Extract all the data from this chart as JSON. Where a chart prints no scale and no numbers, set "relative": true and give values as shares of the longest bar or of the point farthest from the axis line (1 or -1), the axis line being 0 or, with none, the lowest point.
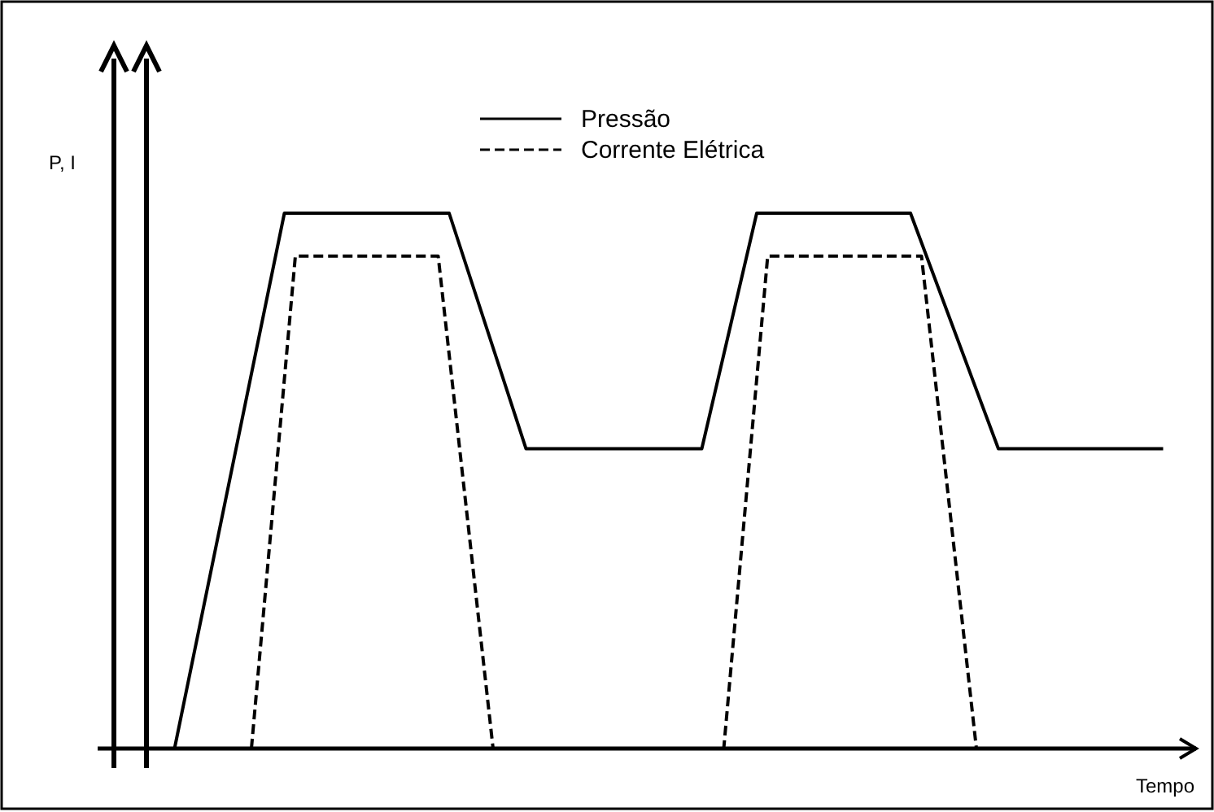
{
  "chart_data": {
    "type": "line",
    "relative": true,
    "xlabel": "Tempo",
    "ylabel": "P, I",
    "legend": "top",
    "categories": [
      null,
      null,
      null,
      null,
      null,
      null,
      null,
      null,
      null,
      null,
      null,
      null,
      null,
      null,
      null,
      null,
      null,
      null,
      null,
      null,
      null,
      null,
      null,
      null,
      null,
      null,
      null,
      null,
      null,
      null,
      null,
      null,
      null,
      null,
      null,
      null,
      null,
      null,
      null,
      null,
      null,
      null,
      null,
      null,
      null,
      null,
      null,
      null,
      null,
      null,
      null,
      null,
      null,
      null,
      null,
      null,
      null,
      null,
      null,
      null,
      null,
      null,
      null,
      null,
      null,
      null,
      null,
      null,
      null,
      null,
      null,
      null,
      null,
      null,
      null,
      null,
      null,
      null,
      null,
      null,
      null,
      null,
      null,
      null,
      null,
      null,
      null,
      null,
      null,
      null,
      null,
      null,
      null,
      null,
      null,
      null,
      null,
      null,
      null,
      null,
      null
    ],
    "series": [
      {
        "name": "Pressão",
        "color": "#000000",
        "line_style": "solid",
        "values": [
          null,
          null,
          null,
          null,
          null,
          null,
          null,
          0,
          null,
          null,
          null,
          null,
          null,
          null,
          null,
          null,
          null,
          1,
          null,
          null,
          null,
          null,
          null,
          null,
          null,
          null,
          null,
          null,
          null,
          null,
          null,
          null,
          1,
          null,
          null,
          null,
          null,
          null,
          null,
          0.56,
          null,
          null,
          null,
          null,
          null,
          null,
          null,
          null,
          null,
          null,
          null,
          null,
          null,
          null,
          null,
          0.56,
          null,
          null,
          null,
          null,
          1,
          null,
          null,
          null,
          null,
          null,
          null,
          null,
          null,
          null,
          null,
          null,
          null,
          null,
          1,
          null,
          null,
          null,
          null,
          null,
          null,
          null,
          0.56,
          null,
          null,
          null,
          null,
          null,
          null,
          null,
          null,
          null,
          null,
          null,
          null,
          null,
          null,
          0.56,
          null,
          null,
          null
        ]
      },
      {
        "name": "Corrente Elétrica",
        "color": "#000000",
        "line_style": "dashed",
        "values": [
          null,
          null,
          null,
          null,
          null,
          null,
          null,
          null,
          null,
          null,
          null,
          null,
          null,
          null,
          0,
          null,
          null,
          null,
          0.92,
          null,
          null,
          null,
          null,
          null,
          null,
          null,
          null,
          null,
          null,
          null,
          null,
          0.92,
          null,
          null,
          null,
          null,
          0,
          null,
          null,
          null,
          null,
          null,
          null,
          null,
          null,
          null,
          null,
          null,
          null,
          null,
          null,
          null,
          null,
          null,
          null,
          null,
          null,
          0,
          null,
          null,
          null,
          0.92,
          null,
          null,
          null,
          null,
          null,
          null,
          null,
          null,
          null,
          null,
          null,
          null,
          null,
          0.92,
          null,
          null,
          null,
          null,
          0,
          null,
          null,
          null,
          null,
          null,
          null,
          null,
          null,
          null,
          null,
          null,
          null,
          null,
          null,
          null,
          null,
          null,
          null,
          null,
          null
        ]
      }
    ]
  }
}
